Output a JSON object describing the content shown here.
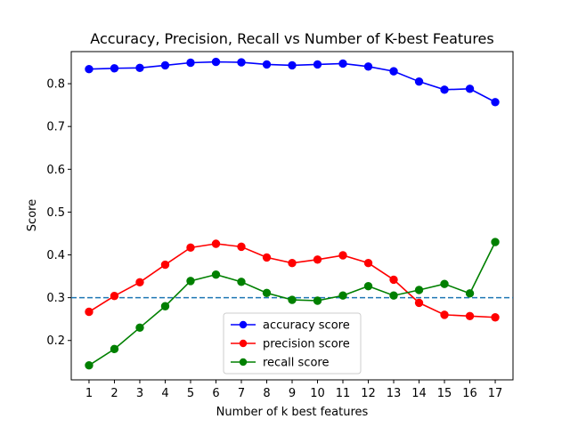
{
  "chart_data": {
    "type": "line",
    "title": "Accuracy, Precision, Recall vs Number of K-best Features",
    "xlabel": "Number of k best features",
    "ylabel": "Score",
    "x": [
      1,
      2,
      3,
      4,
      5,
      6,
      7,
      8,
      9,
      10,
      11,
      12,
      13,
      14,
      15,
      16,
      17
    ],
    "xticks": [
      "1",
      "2",
      "3",
      "4",
      "5",
      "6",
      "7",
      "8",
      "9",
      "10",
      "11",
      "12",
      "13",
      "14",
      "15",
      "16",
      "17"
    ],
    "yticks": [
      "0.2",
      "0.3",
      "0.4",
      "0.5",
      "0.6",
      "0.7",
      "0.8"
    ],
    "ytick_values": [
      0.2,
      0.3,
      0.4,
      0.5,
      0.6,
      0.7,
      0.8
    ],
    "xlim": [
      0.3,
      17.7
    ],
    "ylim": [
      0.108,
      0.875
    ],
    "grid": false,
    "legend_position": "lower-center",
    "series": [
      {
        "name": "accuracy score",
        "color": "#0000ff",
        "values": [
          0.834,
          0.836,
          0.837,
          0.843,
          0.849,
          0.851,
          0.85,
          0.845,
          0.843,
          0.845,
          0.847,
          0.84,
          0.829,
          0.805,
          0.786,
          0.788,
          0.757
        ]
      },
      {
        "name": "precision score",
        "color": "#ff0000",
        "values": [
          0.267,
          0.304,
          0.336,
          0.377,
          0.417,
          0.426,
          0.419,
          0.394,
          0.381,
          0.389,
          0.399,
          0.381,
          0.342,
          0.288,
          0.26,
          0.257,
          0.254
        ]
      },
      {
        "name": "recall score",
        "color": "#008000",
        "values": [
          0.142,
          0.18,
          0.23,
          0.28,
          0.339,
          0.354,
          0.337,
          0.311,
          0.295,
          0.293,
          0.305,
          0.327,
          0.305,
          0.318,
          0.332,
          0.31,
          0.43
        ]
      }
    ],
    "reference_line": {
      "y": 0.3,
      "style": "dashed",
      "color": "#1f77b4"
    }
  }
}
